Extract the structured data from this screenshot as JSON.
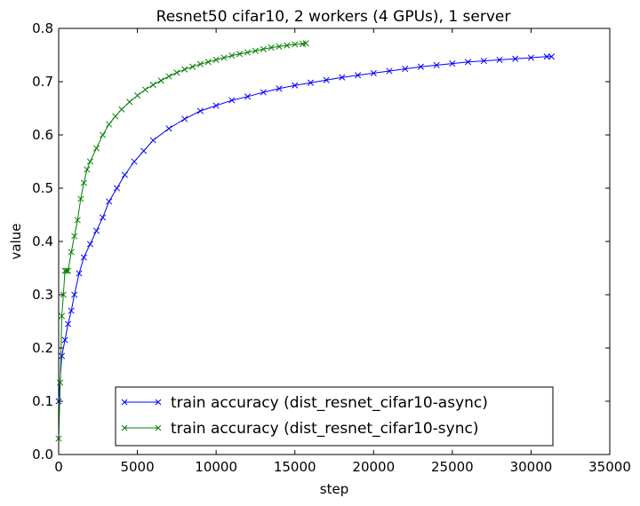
{
  "chart_data": {
    "type": "line",
    "title": "Resnet50 cifar10, 2 workers (4 GPUs), 1 server",
    "xlabel": "step",
    "ylabel": "value",
    "xlim": [
      0,
      35000
    ],
    "ylim": [
      0.0,
      0.8
    ],
    "xticks": [
      0,
      5000,
      10000,
      15000,
      20000,
      25000,
      30000,
      35000
    ],
    "yticks": [
      0.0,
      0.1,
      0.2,
      0.3,
      0.4,
      0.5,
      0.6,
      0.7,
      0.8
    ],
    "xtick_labels": [
      "0",
      "5000",
      "10000",
      "15000",
      "20000",
      "25000",
      "30000",
      "35000"
    ],
    "ytick_labels": [
      "0.0",
      "0.1",
      "0.2",
      "0.3",
      "0.4",
      "0.5",
      "0.6",
      "0.7",
      "0.8"
    ],
    "grid": false,
    "legend_position": "bottom-center",
    "marker": "x",
    "series": [
      {
        "name": "train accuracy (dist_resnet_cifar10-async)",
        "color": "#0000ff",
        "x": [
          0,
          200,
          400,
          600,
          800,
          1000,
          1300,
          1600,
          2000,
          2400,
          2800,
          3200,
          3700,
          4200,
          4800,
          5400,
          6000,
          7000,
          8000,
          9000,
          10000,
          11000,
          12000,
          13000,
          14000,
          15000,
          16000,
          17000,
          18000,
          19000,
          20000,
          21000,
          22000,
          23000,
          24000,
          25000,
          26000,
          27000,
          28000,
          29000,
          30000,
          31000,
          31300
        ],
        "values": [
          0.1,
          0.185,
          0.215,
          0.245,
          0.27,
          0.3,
          0.34,
          0.37,
          0.395,
          0.42,
          0.445,
          0.475,
          0.5,
          0.525,
          0.55,
          0.57,
          0.59,
          0.612,
          0.63,
          0.645,
          0.655,
          0.665,
          0.672,
          0.68,
          0.687,
          0.693,
          0.698,
          0.703,
          0.708,
          0.712,
          0.716,
          0.72,
          0.724,
          0.728,
          0.731,
          0.734,
          0.737,
          0.739,
          0.741,
          0.743,
          0.745,
          0.747,
          0.747
        ]
      },
      {
        "name": "train accuracy (dist_resnet_cifar10-sync)",
        "color": "#008000",
        "x": [
          0,
          100,
          200,
          300,
          400,
          500,
          600,
          800,
          1000,
          1200,
          1400,
          1600,
          1800,
          2000,
          2400,
          2800,
          3200,
          3600,
          4000,
          4500,
          5000,
          5500,
          6000,
          6500,
          7000,
          7500,
          8000,
          8500,
          9000,
          9500,
          10000,
          10500,
          11000,
          11500,
          12000,
          12500,
          13000,
          13500,
          14000,
          14500,
          15000,
          15500,
          15700
        ],
        "values": [
          0.03,
          0.135,
          0.26,
          0.3,
          0.345,
          0.345,
          0.345,
          0.38,
          0.41,
          0.44,
          0.48,
          0.51,
          0.535,
          0.55,
          0.575,
          0.6,
          0.62,
          0.635,
          0.648,
          0.662,
          0.674,
          0.685,
          0.694,
          0.702,
          0.71,
          0.717,
          0.723,
          0.728,
          0.733,
          0.737,
          0.741,
          0.745,
          0.749,
          0.752,
          0.755,
          0.758,
          0.761,
          0.764,
          0.766,
          0.768,
          0.77,
          0.771,
          0.772
        ]
      }
    ]
  }
}
